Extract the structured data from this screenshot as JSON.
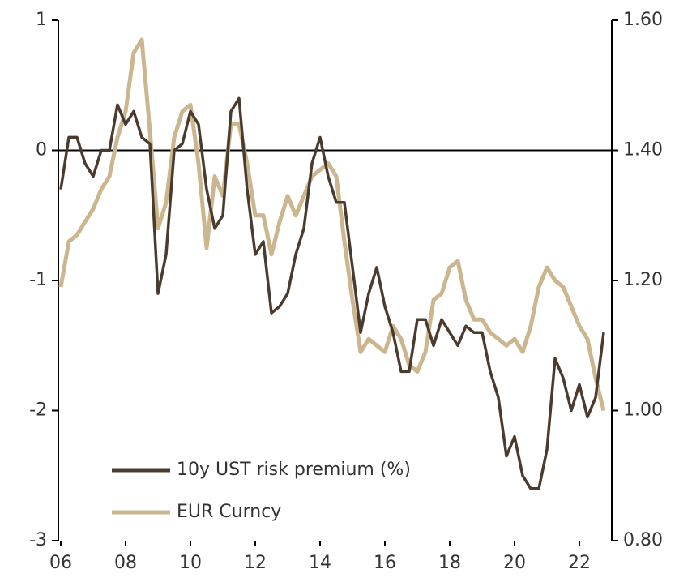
{
  "chart_data": {
    "type": "line",
    "x": [
      2006,
      2006.25,
      2006.5,
      2006.75,
      2007,
      2007.25,
      2007.5,
      2007.75,
      2008,
      2008.25,
      2008.5,
      2008.75,
      2009,
      2009.25,
      2009.5,
      2009.75,
      2010,
      2010.25,
      2010.5,
      2010.75,
      2011,
      2011.25,
      2011.5,
      2011.75,
      2012,
      2012.25,
      2012.5,
      2012.75,
      2013,
      2013.25,
      2013.5,
      2013.75,
      2014,
      2014.25,
      2014.5,
      2014.75,
      2015,
      2015.25,
      2015.5,
      2015.75,
      2016,
      2016.25,
      2016.5,
      2016.75,
      2017,
      2017.25,
      2017.5,
      2017.75,
      2018,
      2018.25,
      2018.5,
      2018.75,
      2019,
      2019.25,
      2019.5,
      2019.75,
      2020,
      2020.25,
      2020.5,
      2020.75,
      2021,
      2021.25,
      2021.5,
      2021.75,
      2022,
      2022.25,
      2022.5,
      2022.75
    ],
    "series": [
      {
        "name": "10y UST risk premium (%)",
        "color": "#4b3b2f",
        "values": [
          -0.3,
          0.1,
          0.1,
          -0.1,
          -0.2,
          0.0,
          0.0,
          0.35,
          0.2,
          0.3,
          0.1,
          0.05,
          -1.1,
          -0.8,
          0.0,
          0.05,
          0.3,
          0.2,
          -0.3,
          -0.6,
          -0.5,
          0.3,
          0.4,
          -0.3,
          -0.8,
          -0.7,
          -1.25,
          -1.2,
          -1.1,
          -0.8,
          -0.6,
          -0.1,
          0.1,
          -0.2,
          -0.4,
          -0.4,
          -0.9,
          -1.4,
          -1.1,
          -0.9,
          -1.2,
          -1.4,
          -1.7,
          -1.7,
          -1.3,
          -1.3,
          -1.5,
          -1.3,
          -1.4,
          -1.5,
          -1.35,
          -1.4,
          -1.4,
          -1.7,
          -1.9,
          -2.35,
          -2.2,
          -2.5,
          -2.6,
          -2.6,
          -2.3,
          -1.6,
          -1.75,
          -2.0,
          -1.8,
          -2.05,
          -1.9,
          -1.4
        ]
      },
      {
        "name": "EUR Curncy",
        "color": "#cbb68f",
        "axis": "y2",
        "values": [
          1.19,
          1.26,
          1.27,
          1.29,
          1.31,
          1.34,
          1.36,
          1.42,
          1.46,
          1.55,
          1.57,
          1.43,
          1.28,
          1.32,
          1.42,
          1.46,
          1.47,
          1.38,
          1.25,
          1.36,
          1.33,
          1.44,
          1.44,
          1.38,
          1.3,
          1.3,
          1.24,
          1.29,
          1.33,
          1.3,
          1.33,
          1.36,
          1.37,
          1.38,
          1.36,
          1.26,
          1.17,
          1.09,
          1.11,
          1.1,
          1.09,
          1.13,
          1.11,
          1.07,
          1.06,
          1.09,
          1.17,
          1.18,
          1.22,
          1.23,
          1.17,
          1.14,
          1.14,
          1.12,
          1.11,
          1.1,
          1.11,
          1.09,
          1.13,
          1.19,
          1.22,
          1.2,
          1.19,
          1.16,
          1.13,
          1.11,
          1.05,
          1.0
        ]
      }
    ],
    "xlim": [
      2006,
      2023
    ],
    "xticks": [
      {
        "value": 2006,
        "label": "06"
      },
      {
        "value": 2008,
        "label": "08"
      },
      {
        "value": 2010,
        "label": "10"
      },
      {
        "value": 2012,
        "label": "12"
      },
      {
        "value": 2014,
        "label": "14"
      },
      {
        "value": 2016,
        "label": "16"
      },
      {
        "value": 2018,
        "label": "18"
      },
      {
        "value": 2020,
        "label": "20"
      },
      {
        "value": 2022,
        "label": "22"
      }
    ],
    "ylim": [
      -3,
      1
    ],
    "yticks": [
      1,
      0,
      -1,
      -2,
      -3
    ],
    "y2lim": [
      0.8,
      1.6
    ],
    "y2ticks": [
      {
        "value": 1.6,
        "label": "1.60"
      },
      {
        "value": 1.4,
        "label": "1.40"
      },
      {
        "value": 1.2,
        "label": "1.20"
      },
      {
        "value": 1.0,
        "label": "1.00"
      },
      {
        "value": 0.8,
        "label": "0.80"
      }
    ],
    "legend": "lower left"
  }
}
